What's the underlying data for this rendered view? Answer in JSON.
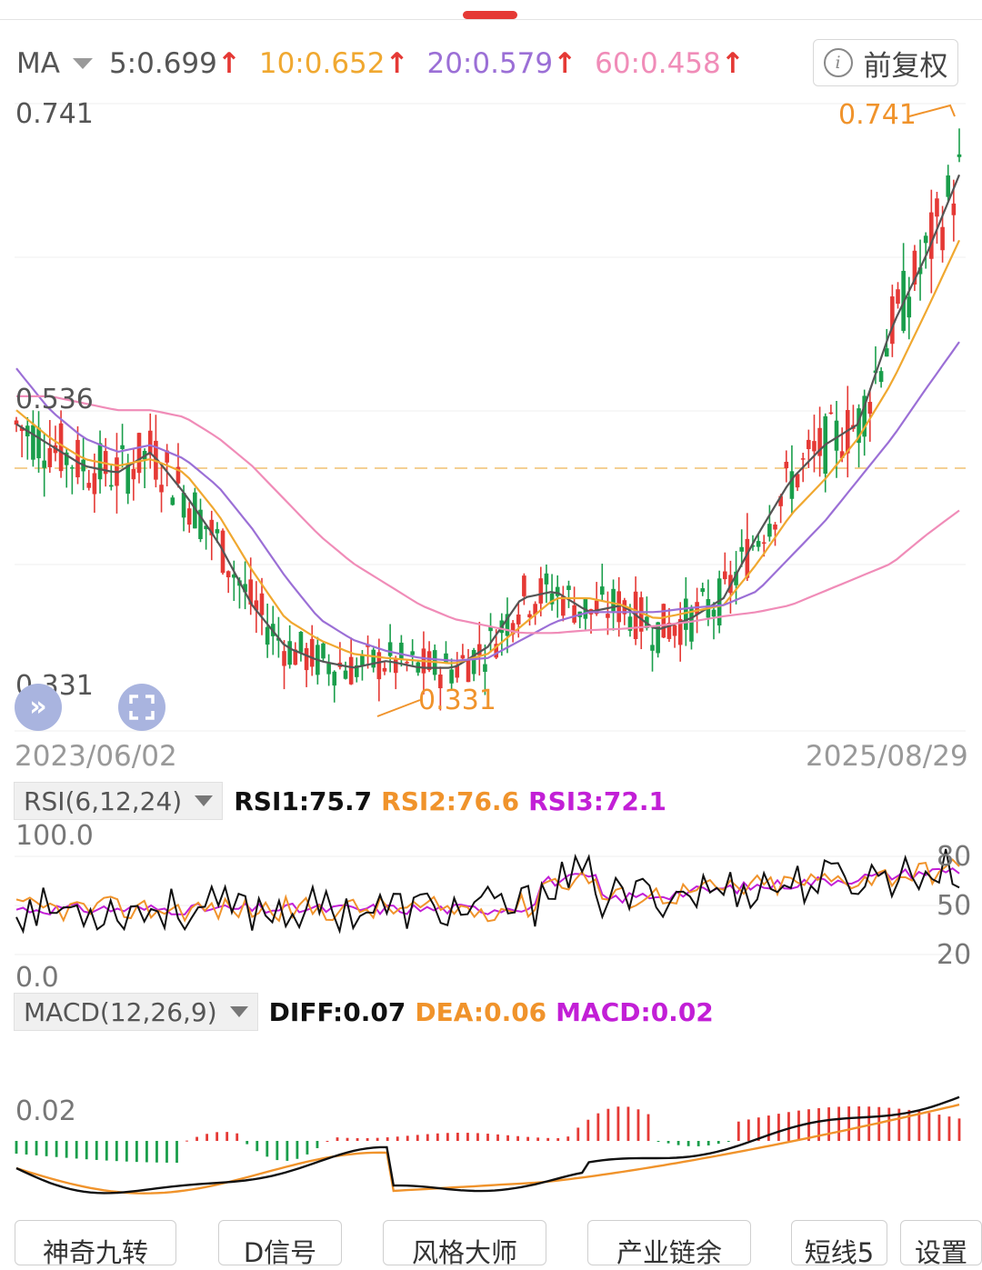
{
  "ma": {
    "label": "MA",
    "items": [
      {
        "text": "5:0.699",
        "color": "#555555"
      },
      {
        "text": "10:0.652",
        "color": "#f0a830"
      },
      {
        "text": "20:0.579",
        "color": "#9b6fd6"
      },
      {
        "text": "60:0.458",
        "color": "#f08cb8"
      }
    ],
    "arrow": "↑",
    "fq_label": "前复权",
    "info_icon": "i"
  },
  "price": {
    "top_label": "0.741",
    "mid_label": "0.536",
    "low_label": "0.331",
    "high_marker": "0.741",
    "low_marker": "0.331",
    "start_date": "2023/06/02",
    "end_date": "2025/08/29"
  },
  "rsi": {
    "name": "RSI(6,12,24)",
    "values": [
      {
        "text": "RSI1:75.7",
        "color": "#111111"
      },
      {
        "text": "RSI2:76.6",
        "color": "#f0932b"
      },
      {
        "text": "RSI3:72.1",
        "color": "#c21fd6"
      }
    ],
    "scale_top": "100.0",
    "scale_bottom": "0.0",
    "levels": [
      "80",
      "50",
      "20"
    ]
  },
  "macd": {
    "name": "MACD(12,26,9)",
    "values": [
      {
        "text": "DIFF:0.07",
        "color": "#111111"
      },
      {
        "text": "DEA:0.06",
        "color": "#f0932b"
      },
      {
        "text": "MACD:0.02",
        "color": "#c21fd6"
      }
    ],
    "scale_label": "0.02"
  },
  "tabs": [
    "神奇九转",
    "D信号",
    "风格大师",
    "产业链余",
    "短线5",
    "设置"
  ],
  "colors": {
    "up": "#e53935",
    "down": "#1a9e4b",
    "ma5": "#555555",
    "ma10": "#f0a830",
    "ma20": "#9b6fd6",
    "ma60": "#f08cb8"
  },
  "icons": {
    "expand": "double-chevron-icon",
    "fullscreen": "fullscreen-icon"
  },
  "chart_data": {
    "type": "line",
    "title": "",
    "x_range": [
      "2023/06/02",
      "2025/08/29"
    ],
    "price_range": [
      0.331,
      0.741
    ],
    "reference_price": 0.536,
    "series": [
      {
        "name": "MA5",
        "values": [
          0.52,
          0.505,
          0.49,
          0.485,
          0.5,
          0.47,
          0.435,
          0.39,
          0.36,
          0.35,
          0.345,
          0.35,
          0.345,
          0.345,
          0.36,
          0.395,
          0.4,
          0.385,
          0.39,
          0.372,
          0.38,
          0.395,
          0.44,
          0.48,
          0.505,
          0.52,
          0.59,
          0.64,
          0.699
        ]
      },
      {
        "name": "MA10",
        "values": [
          0.53,
          0.51,
          0.495,
          0.49,
          0.495,
          0.485,
          0.455,
          0.415,
          0.38,
          0.365,
          0.355,
          0.352,
          0.35,
          0.348,
          0.355,
          0.375,
          0.395,
          0.395,
          0.39,
          0.38,
          0.385,
          0.39,
          0.42,
          0.455,
          0.48,
          0.51,
          0.55,
          0.6,
          0.652
        ]
      },
      {
        "name": "MA20",
        "values": [
          0.56,
          0.53,
          0.51,
          0.5,
          0.505,
          0.495,
          0.475,
          0.445,
          0.41,
          0.38,
          0.365,
          0.357,
          0.352,
          0.35,
          0.352,
          0.365,
          0.378,
          0.385,
          0.385,
          0.385,
          0.388,
          0.39,
          0.4,
          0.425,
          0.45,
          0.48,
          0.51,
          0.545,
          0.579
        ]
      },
      {
        "name": "MA60",
        "values": [
          0.54,
          0.54,
          0.535,
          0.53,
          0.53,
          0.525,
          0.51,
          0.49,
          0.465,
          0.44,
          0.42,
          0.405,
          0.39,
          0.38,
          0.375,
          0.37,
          0.37,
          0.372,
          0.373,
          0.375,
          0.378,
          0.382,
          0.385,
          0.39,
          0.4,
          0.41,
          0.42,
          0.44,
          0.458
        ]
      }
    ],
    "rsi_latest": {
      "RSI1": 75.7,
      "RSI2": 76.6,
      "RSI3": 72.1
    },
    "macd_latest": {
      "DIFF": 0.07,
      "DEA": 0.06,
      "MACD": 0.02
    }
  }
}
